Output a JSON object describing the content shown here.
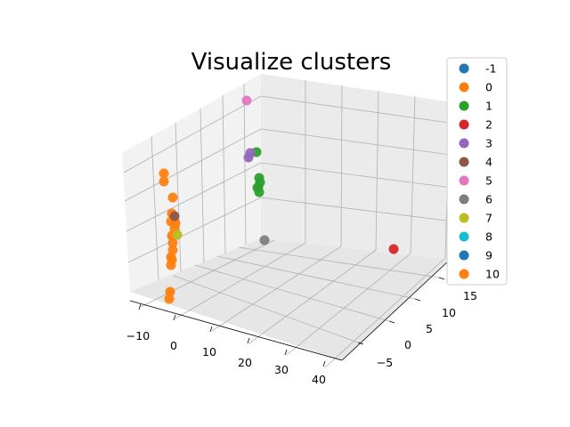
{
  "chart_data": {
    "type": "scatter3d",
    "title": "Visualize clusters",
    "xlabel": "",
    "ylabel": "",
    "zlabel": "",
    "xlim": [
      -15,
      45
    ],
    "ylim": [
      -8,
      18
    ],
    "zlim": [
      -5,
      35
    ],
    "xticks": [
      "−10",
      "0",
      "10",
      "20",
      "30",
      "40"
    ],
    "yticks": [
      "−5",
      "0",
      "5",
      "10",
      "15"
    ],
    "grid": true,
    "legend": "top-right",
    "series": [
      {
        "name": "-1",
        "color": "#1f77b4",
        "points": []
      },
      {
        "name": "0",
        "color": "#ff7f0e",
        "points": [
          [
            -10,
            10,
            0
          ],
          [
            -10,
            10,
            2
          ],
          [
            -10,
            10,
            6
          ],
          [
            -10,
            10,
            8
          ],
          [
            -10,
            10,
            10
          ],
          [
            -10,
            10,
            11
          ],
          [
            -10,
            10,
            13
          ],
          [
            -10,
            10,
            15
          ],
          [
            -10,
            10,
            16
          ],
          [
            -10,
            10,
            17
          ],
          [
            -10,
            10,
            18
          ],
          [
            -10,
            10,
            22
          ],
          [
            -10,
            10,
            27
          ],
          [
            -10,
            10,
            28
          ]
        ]
      },
      {
        "name": "1",
        "color": "#2ca02c",
        "points": [
          [
            20,
            10,
            20
          ],
          [
            20,
            10,
            22
          ],
          [
            20,
            10,
            23
          ],
          [
            20,
            10,
            24
          ],
          [
            20,
            10,
            25
          ],
          [
            20,
            10,
            30
          ]
        ]
      },
      {
        "name": "2",
        "color": "#d62728",
        "points": [
          [
            40,
            -5,
            5
          ]
        ]
      },
      {
        "name": "3",
        "color": "#9467bd",
        "points": [
          [
            20,
            10,
            30
          ],
          [
            20,
            10,
            31
          ]
        ]
      },
      {
        "name": "4",
        "color": "#8c564b",
        "points": [
          [
            -10,
            10,
            17
          ]
        ]
      },
      {
        "name": "5",
        "color": "#e377c2",
        "points": [
          [
            20,
            10,
            38
          ]
        ]
      },
      {
        "name": "6",
        "color": "#7f7f7f",
        "points": [
          [
            20,
            10,
            10
          ]
        ]
      },
      {
        "name": "7",
        "color": "#bcbd22",
        "points": [
          [
            -10,
            10,
            14
          ]
        ]
      },
      {
        "name": "8",
        "color": "#17becf",
        "points": []
      },
      {
        "name": "9",
        "color": "#1f77b4",
        "points": []
      },
      {
        "name": "10",
        "color": "#ff7f0e",
        "points": []
      }
    ]
  }
}
